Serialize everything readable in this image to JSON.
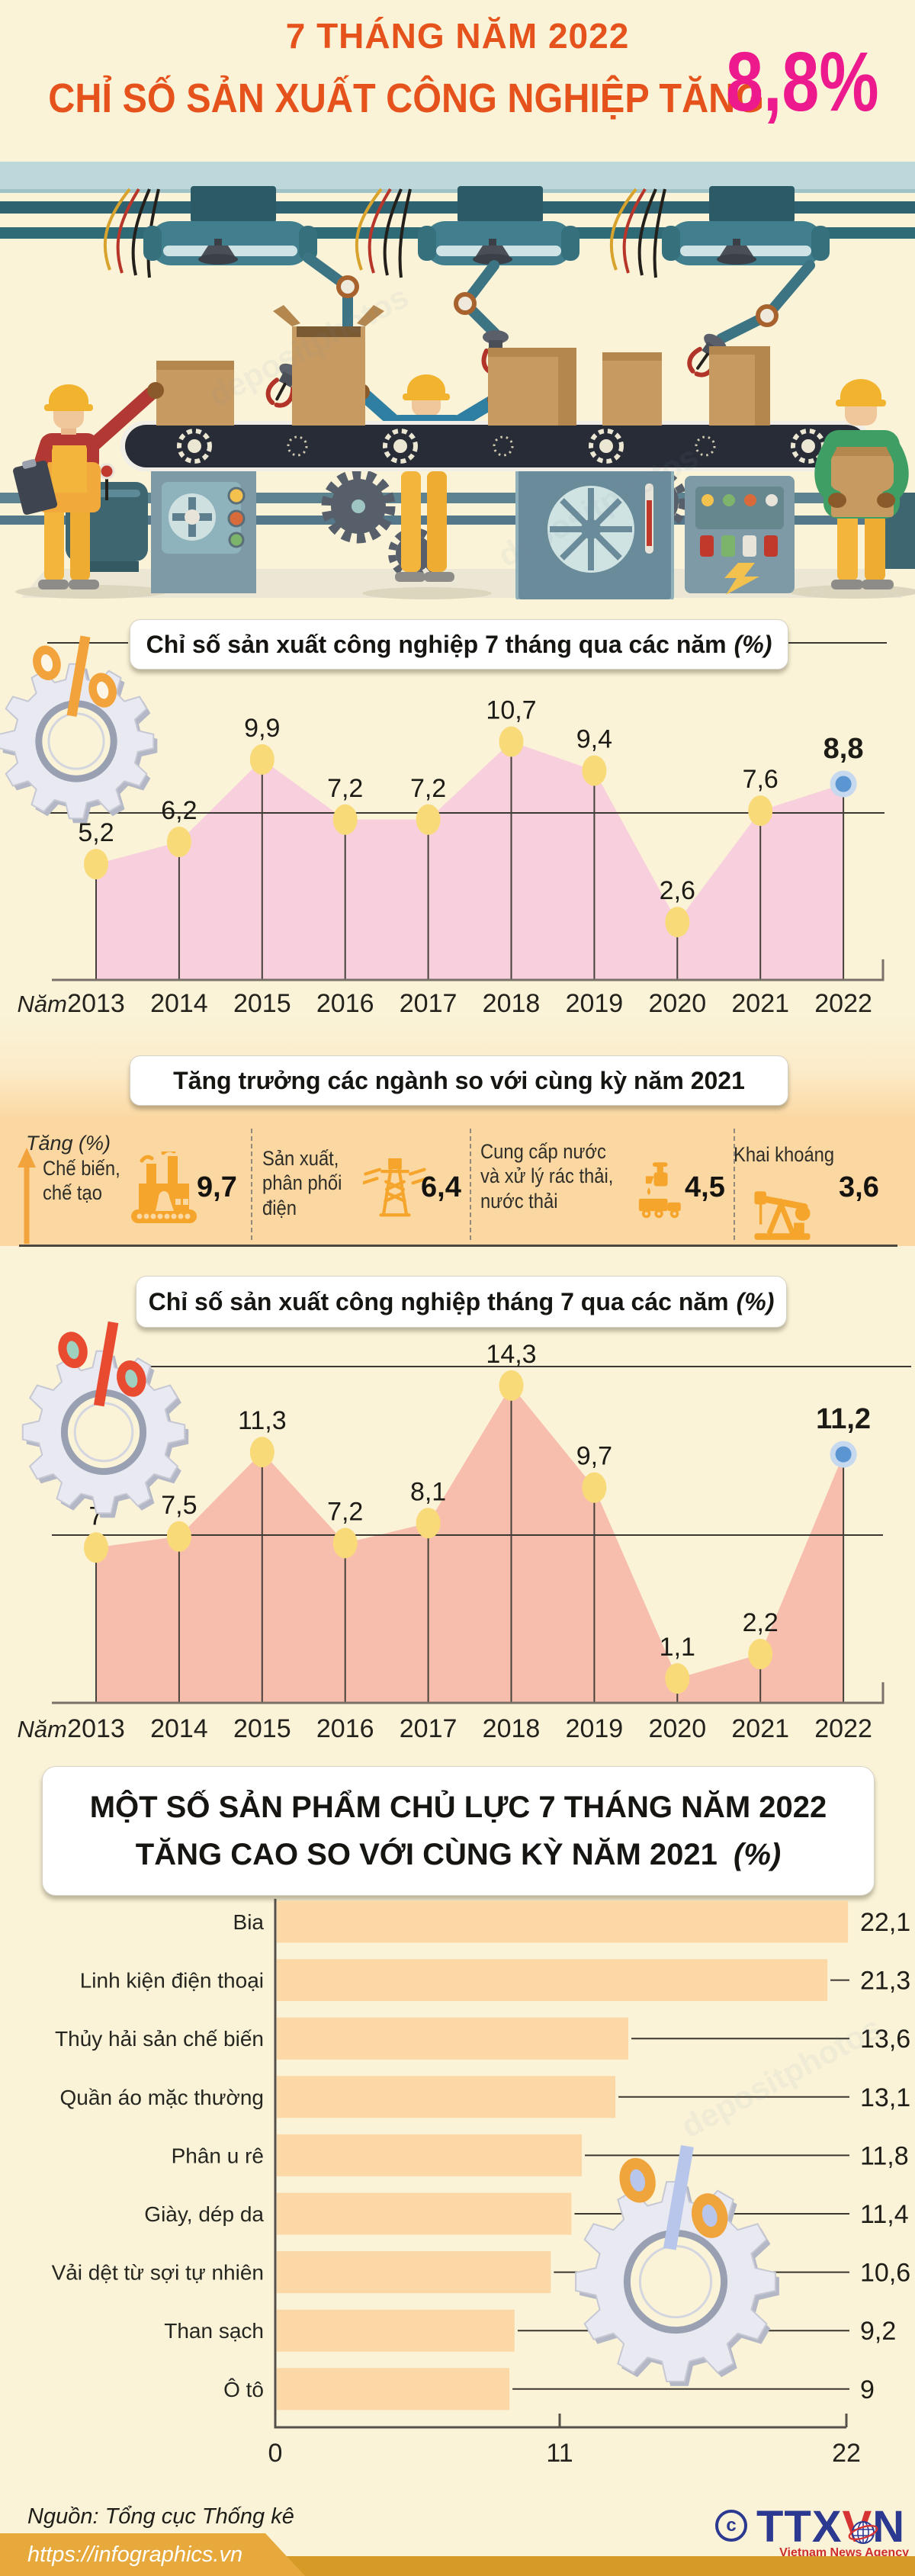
{
  "colors": {
    "page_bg": "#faf3d8",
    "accent_orange": "#e5521c",
    "highlight_pink": "#ec1a8d",
    "band_bg": "#fbd8a2",
    "icon_orange": "#f6a52c",
    "bar_fill": "#fcd8a6",
    "area1_fill": "#f8cfdc",
    "area2_fill": "#f8bead",
    "point_fill": "#f9da78",
    "point_last": "#5b96d2",
    "point_last_ring": "#c7d9ef",
    "footer_strip": "#d69a27",
    "footer_tab": "#e7a93c",
    "logo_blue": "#2b3990",
    "logo_red": "#d63434"
  },
  "header": {
    "kicker": "7 THÁNG NĂM 2022",
    "title": "CHỈ SỐ SẢN XUẤT CÔNG NGHIỆP TĂNG",
    "highlight": "8,8%"
  },
  "chart1": {
    "title": "Chỉ số sản xuất công nghiệp 7 tháng qua các năm",
    "unit": "(%)",
    "axis_label": "Năm",
    "years": [
      "2013",
      "2014",
      "2015",
      "2016",
      "2017",
      "2018",
      "2019",
      "2020",
      "2021",
      "2022"
    ],
    "values": [
      "5,2",
      "6,2",
      "9,9",
      "7,2",
      "7,2",
      "10,7",
      "9,4",
      "2,6",
      "7,6",
      "8,8"
    ]
  },
  "sectors": {
    "title": "Tăng trưởng các ngành so với cùng kỳ năm 2021",
    "axis_note": "Tăng (%)",
    "items": [
      {
        "lines": [
          "Chế biến,",
          "chế tạo"
        ],
        "icon": "factory-icon",
        "value": "9,7"
      },
      {
        "lines": [
          "Sản xuất,",
          "phân phối",
          "điện"
        ],
        "icon": "power-tower-icon",
        "value": "6,4"
      },
      {
        "lines": [
          "Cung cấp nước",
          "và xử lý rác thải,",
          "nước thải"
        ],
        "icon": "water-truck-icon",
        "value": "4,5"
      },
      {
        "lines": [
          "Khai khoáng"
        ],
        "icon": "oil-pump-icon",
        "value": "3,6"
      }
    ]
  },
  "chart2": {
    "title": "Chỉ số sản xuất công nghiệp tháng 7 qua các năm",
    "unit": "(%)",
    "axis_label": "Năm",
    "years": [
      "2013",
      "2014",
      "2015",
      "2016",
      "2017",
      "2018",
      "2019",
      "2020",
      "2021",
      "2022"
    ],
    "values": [
      "7",
      "7,5",
      "11,3",
      "7,2",
      "8,1",
      "14,3",
      "9,7",
      "1,1",
      "2,2",
      "11,2"
    ]
  },
  "products": {
    "title_line1": "MỘT SỐ SẢN PHẨM CHỦ LỰC 7 THÁNG NĂM 2022",
    "title_line2": "TĂNG CAO SO VỚI CÙNG KỲ NĂM 2021",
    "unit": "(%)",
    "ticks": [
      "0",
      "11",
      "22"
    ],
    "items": [
      {
        "label": "Bia",
        "value": "22,1"
      },
      {
        "label": "Linh kiện điện thoại",
        "value": "21,3"
      },
      {
        "label": "Thủy hải sản chế biến",
        "value": "13,6"
      },
      {
        "label": "Quần áo mặc thường",
        "value": "13,1"
      },
      {
        "label": "Phân u rê",
        "value": "11,8"
      },
      {
        "label": "Giày, dép da",
        "value": "11,4"
      },
      {
        "label": "Vải dệt từ sợi tự nhiên",
        "value": "10,6"
      },
      {
        "label": "Than sạch",
        "value": "9,2"
      },
      {
        "label": "Ô tô",
        "value": "9"
      }
    ]
  },
  "footer": {
    "source": "Nguồn: Tổng cục Thống kê",
    "url": "https://infographics.vn",
    "copyright_symbol": "c",
    "logo_text_left": "TTX",
    "logo_text_accent": "V",
    "logo_text_right": "N",
    "logo_subtitle": "Vietnam News Agency"
  },
  "watermarks": [
    "depositphotos",
    "depositphotos",
    "depositphotos"
  ],
  "chart_data": [
    {
      "type": "area",
      "title": "Chỉ số sản xuất công nghiệp 7 tháng qua các năm (%)",
      "xlabel": "Năm",
      "x": [
        2013,
        2014,
        2015,
        2016,
        2017,
        2018,
        2019,
        2020,
        2021,
        2022
      ],
      "values": [
        5.2,
        6.2,
        9.9,
        7.2,
        7.2,
        10.7,
        9.4,
        2.6,
        7.6,
        8.8
      ],
      "highlight_last": true,
      "grid": false,
      "legend_position": "none"
    },
    {
      "type": "bar",
      "subtype": "sector-growth-pictogram",
      "title": "Tăng trưởng các ngành so với cùng kỳ năm 2021 (%)",
      "categories": [
        "Chế biến, chế tạo",
        "Sản xuất, phân phối điện",
        "Cung cấp nước và xử lý rác thải, nước thải",
        "Khai khoáng"
      ],
      "values": [
        9.7,
        6.4,
        4.5,
        3.6
      ]
    },
    {
      "type": "area",
      "title": "Chỉ số sản xuất công nghiệp tháng 7 qua các năm (%)",
      "xlabel": "Năm",
      "x": [
        2013,
        2014,
        2015,
        2016,
        2017,
        2018,
        2019,
        2020,
        2021,
        2022
      ],
      "values": [
        7,
        7.5,
        11.3,
        7.2,
        8.1,
        14.3,
        9.7,
        1.1,
        2.2,
        11.2
      ],
      "highlight_last": true,
      "grid": false,
      "legend_position": "none"
    },
    {
      "type": "bar",
      "orientation": "horizontal",
      "title": "Một số sản phẩm chủ lực 7 tháng năm 2022 tăng cao so với cùng kỳ năm 2021 (%)",
      "categories": [
        "Bia",
        "Linh kiện điện thoại",
        "Thủy hải sản chế biến",
        "Quần áo mặc thường",
        "Phân u rê",
        "Giày, dép da",
        "Vải dệt từ sợi tự nhiên",
        "Than sạch",
        "Ô tô"
      ],
      "values": [
        22.1,
        21.3,
        13.6,
        13.1,
        11.8,
        11.4,
        10.6,
        9.2,
        9
      ],
      "xlim": [
        0,
        22
      ],
      "xticks": [
        0,
        11,
        22
      ]
    }
  ]
}
